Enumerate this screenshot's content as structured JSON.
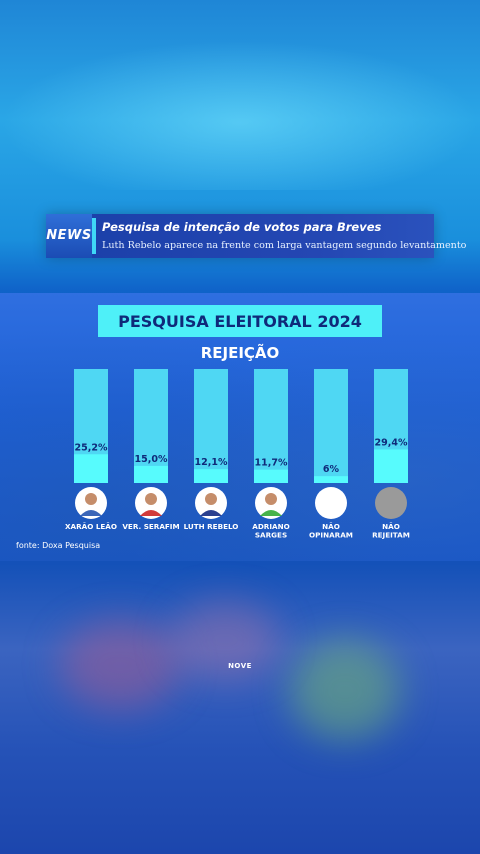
{
  "news": {
    "badge": "NEWS",
    "title": "Pesquisa de intenção de votos para Breves",
    "subtitle": "Luth Rebelo aparece na frente com larga vantagem segundo levantamento"
  },
  "source": "fonte: Doxa Pesquisa",
  "watermark": "NOVE",
  "colors": {
    "bar_track": "#4fd7f3",
    "bar_fill": "#57fbfd",
    "title_box": "#4ef0f8",
    "value_text": "#0f2a7a"
  },
  "chart_data": {
    "type": "bar",
    "title": "PESQUISA ELEITORAL 2024",
    "subtitle": "REJEIÇÃO",
    "ylim": [
      0,
      100
    ],
    "categories": [
      [
        "XARÃO LEÃO"
      ],
      [
        "VER. SERAFIM"
      ],
      [
        "LUTH REBELO"
      ],
      [
        "ADRIANO",
        "SARGES"
      ],
      [
        "NÃO",
        "OPINARAM"
      ],
      [
        "NÃO",
        "REJEITAM"
      ]
    ],
    "values": [
      25.2,
      15.0,
      12.1,
      11.7,
      6,
      29.4
    ],
    "value_labels": [
      "25,2%",
      "15,0%",
      "12,1%",
      "11,7%",
      "6%",
      "29,4%"
    ],
    "avatar_icons": [
      "person-photo-icon",
      "person-photo-icon",
      "person-photo-icon",
      "person-photo-icon",
      "blank-white-circle-icon",
      "blank-gray-circle-icon"
    ]
  }
}
